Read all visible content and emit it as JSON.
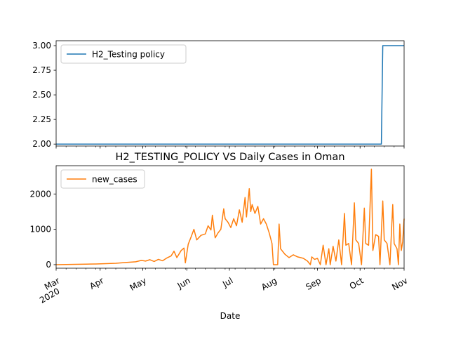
{
  "chart_data": [
    {
      "type": "line",
      "title": "",
      "xlabel": "",
      "ylabel": "",
      "ylim": [
        1.98,
        3.05
      ],
      "yticks": [
        "2.00",
        "2.25",
        "2.50",
        "2.75",
        "3.00"
      ],
      "ytick_values": [
        2.0,
        2.25,
        2.5,
        2.75,
        3.0
      ],
      "grid": false,
      "legend": "upper-left",
      "x_range": [
        "2020-03-01",
        "2020-11-01"
      ],
      "series": [
        {
          "name": "H2_Testing policy",
          "color": "#1f77b4",
          "points": [
            [
              "2020-03-01",
              2
            ],
            [
              "2020-10-16",
              2
            ],
            [
              "2020-10-17",
              3
            ],
            [
              "2020-11-01",
              3
            ]
          ]
        }
      ]
    },
    {
      "type": "line",
      "title": "H2_TESTING_POLICY VS Daily Cases in Oman",
      "xlabel": "Date",
      "ylabel": "",
      "ylim": [
        -100,
        2800
      ],
      "yticks": [
        "0",
        "1000",
        "2000"
      ],
      "ytick_values": [
        0,
        1000,
        2000
      ],
      "grid": false,
      "legend": "upper-left",
      "x_range": [
        "2020-03-01",
        "2020-11-01"
      ],
      "xticks": [
        {
          "date": "2020-03-01",
          "label": "Mar",
          "sub": "2020"
        },
        {
          "date": "2020-04-01",
          "label": "Apr",
          "sub": ""
        },
        {
          "date": "2020-05-01",
          "label": "May",
          "sub": ""
        },
        {
          "date": "2020-06-01",
          "label": "Jun",
          "sub": ""
        },
        {
          "date": "2020-07-01",
          "label": "Jul",
          "sub": ""
        },
        {
          "date": "2020-08-01",
          "label": "Aug",
          "sub": ""
        },
        {
          "date": "2020-09-01",
          "label": "Sep",
          "sub": ""
        },
        {
          "date": "2020-10-01",
          "label": "Oct",
          "sub": ""
        },
        {
          "date": "2020-11-01",
          "label": "Nov",
          "sub": ""
        }
      ],
      "series": [
        {
          "name": "new_cases",
          "color": "#ff7f0e",
          "points": [
            [
              "2020-03-01",
              0
            ],
            [
              "2020-03-08",
              5
            ],
            [
              "2020-03-15",
              10
            ],
            [
              "2020-03-22",
              15
            ],
            [
              "2020-03-29",
              20
            ],
            [
              "2020-04-05",
              30
            ],
            [
              "2020-04-12",
              40
            ],
            [
              "2020-04-19",
              60
            ],
            [
              "2020-04-26",
              80
            ],
            [
              "2020-04-30",
              120
            ],
            [
              "2020-05-03",
              100
            ],
            [
              "2020-05-06",
              140
            ],
            [
              "2020-05-09",
              90
            ],
            [
              "2020-05-12",
              150
            ],
            [
              "2020-05-15",
              110
            ],
            [
              "2020-05-18",
              190
            ],
            [
              "2020-05-21",
              250
            ],
            [
              "2020-05-23",
              380
            ],
            [
              "2020-05-25",
              200
            ],
            [
              "2020-05-28",
              400
            ],
            [
              "2020-05-30",
              470
            ],
            [
              "2020-05-31",
              50
            ],
            [
              "2020-06-02",
              580
            ],
            [
              "2020-06-04",
              780
            ],
            [
              "2020-06-06",
              1000
            ],
            [
              "2020-06-08",
              700
            ],
            [
              "2020-06-11",
              830
            ],
            [
              "2020-06-14",
              870
            ],
            [
              "2020-06-16",
              1100
            ],
            [
              "2020-06-18",
              980
            ],
            [
              "2020-06-19",
              1400
            ],
            [
              "2020-06-21",
              760
            ],
            [
              "2020-06-23",
              900
            ],
            [
              "2020-06-25",
              1000
            ],
            [
              "2020-06-27",
              1580
            ],
            [
              "2020-06-28",
              1300
            ],
            [
              "2020-06-30",
              1200
            ],
            [
              "2020-07-02",
              1050
            ],
            [
              "2020-07-04",
              1300
            ],
            [
              "2020-07-06",
              1100
            ],
            [
              "2020-07-08",
              1550
            ],
            [
              "2020-07-10",
              1200
            ],
            [
              "2020-07-12",
              1900
            ],
            [
              "2020-07-13",
              1350
            ],
            [
              "2020-07-15",
              2150
            ],
            [
              "2020-07-16",
              1500
            ],
            [
              "2020-07-17",
              1700
            ],
            [
              "2020-07-19",
              1450
            ],
            [
              "2020-07-21",
              1650
            ],
            [
              "2020-07-23",
              1150
            ],
            [
              "2020-07-25",
              1300
            ],
            [
              "2020-07-27",
              1150
            ],
            [
              "2020-07-29",
              900
            ],
            [
              "2020-07-31",
              600
            ],
            [
              "2020-08-01",
              0
            ],
            [
              "2020-08-04",
              0
            ],
            [
              "2020-08-05",
              1150
            ],
            [
              "2020-08-06",
              450
            ],
            [
              "2020-08-09",
              300
            ],
            [
              "2020-08-12",
              200
            ],
            [
              "2020-08-15",
              280
            ],
            [
              "2020-08-18",
              220
            ],
            [
              "2020-08-22",
              180
            ],
            [
              "2020-08-25",
              100
            ],
            [
              "2020-08-27",
              0
            ],
            [
              "2020-08-28",
              220
            ],
            [
              "2020-08-30",
              150
            ],
            [
              "2020-09-01",
              180
            ],
            [
              "2020-09-03",
              0
            ],
            [
              "2020-09-05",
              550
            ],
            [
              "2020-09-07",
              0
            ],
            [
              "2020-09-09",
              450
            ],
            [
              "2020-09-10",
              0
            ],
            [
              "2020-09-12",
              520
            ],
            [
              "2020-09-14",
              100
            ],
            [
              "2020-09-16",
              700
            ],
            [
              "2020-09-18",
              0
            ],
            [
              "2020-09-20",
              1450
            ],
            [
              "2020-09-21",
              550
            ],
            [
              "2020-09-23",
              600
            ],
            [
              "2020-09-25",
              0
            ],
            [
              "2020-09-27",
              1750
            ],
            [
              "2020-09-28",
              700
            ],
            [
              "2020-09-30",
              600
            ],
            [
              "2020-10-02",
              0
            ],
            [
              "2020-10-04",
              1600
            ],
            [
              "2020-10-05",
              600
            ],
            [
              "2020-10-07",
              550
            ],
            [
              "2020-10-09",
              2700
            ],
            [
              "2020-10-10",
              400
            ],
            [
              "2020-10-12",
              850
            ],
            [
              "2020-10-14",
              800
            ],
            [
              "2020-10-15",
              0
            ],
            [
              "2020-10-17",
              1800
            ],
            [
              "2020-10-18",
              700
            ],
            [
              "2020-10-20",
              600
            ],
            [
              "2020-10-22",
              0
            ],
            [
              "2020-10-24",
              1700
            ],
            [
              "2020-10-25",
              600
            ],
            [
              "2020-10-27",
              450
            ],
            [
              "2020-10-28",
              0
            ],
            [
              "2020-10-29",
              1150
            ],
            [
              "2020-10-30",
              400
            ],
            [
              "2020-10-31",
              650
            ],
            [
              "2020-11-01",
              1300
            ]
          ]
        }
      ]
    }
  ]
}
